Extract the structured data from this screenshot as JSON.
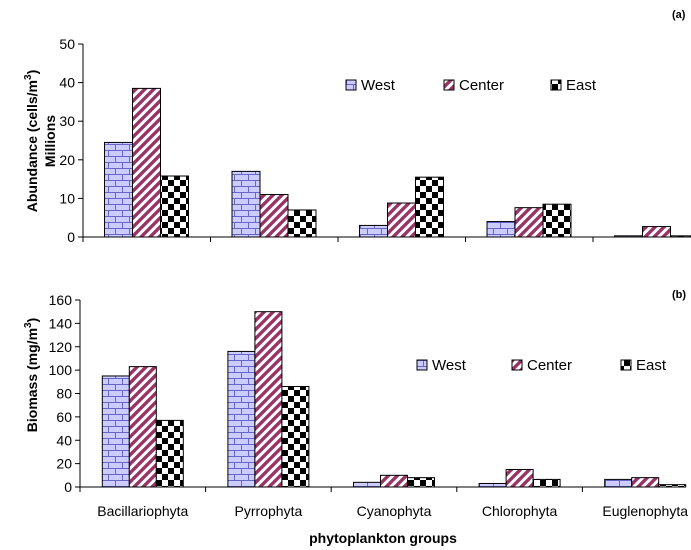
{
  "chart_data": [
    {
      "panel_label": "(a)",
      "type": "bar",
      "categories": [
        "Bacillariophyta",
        "Pyrrophyta",
        "Cyanophyta",
        "Chlorophyta",
        "Euglenophyta"
      ],
      "series": [
        {
          "name": "West",
          "values": [
            24.5,
            17.0,
            3.0,
            4.0,
            0.3
          ]
        },
        {
          "name": "Center",
          "values": [
            38.5,
            11.0,
            8.8,
            7.6,
            2.7
          ]
        },
        {
          "name": "East",
          "values": [
            15.8,
            7.0,
            15.5,
            8.5,
            0.3
          ]
        }
      ],
      "ylabel_line1": "Abundance (cells/m",
      "ylabel_sup": "3",
      "ylabel_line1_end": ")",
      "ylabel_line2": "Millions",
      "yticks": [
        "0",
        "10",
        "20",
        "30",
        "40",
        "50"
      ],
      "ylim": [
        0,
        50
      ],
      "legend_placement": "upper-right"
    },
    {
      "panel_label": "(b)",
      "type": "bar",
      "categories": [
        "Bacillariophyta",
        "Pyrrophyta",
        "Cyanophyta",
        "Chlorophyta",
        "Euglenophyta"
      ],
      "series": [
        {
          "name": "West",
          "values": [
            95,
            116,
            4,
            3,
            6.5
          ]
        },
        {
          "name": "Center",
          "values": [
            103,
            150,
            10,
            15,
            8
          ]
        },
        {
          "name": "East",
          "values": [
            57,
            86,
            8,
            6.5,
            2
          ]
        }
      ],
      "ylabel": "Biomass (mg/m",
      "ylabel_sup": "3",
      "ylabel_end": ")",
      "yticks": [
        "0",
        "20",
        "40",
        "60",
        "80",
        "100",
        "120",
        "140",
        "160"
      ],
      "ylim": [
        0,
        160
      ],
      "xlabel": "phytoplankton groups",
      "legend_placement": "middle-right"
    }
  ],
  "colors": {
    "west_fill": "#ccccff",
    "west_line": "#6666cc",
    "center_stripe": "#993366",
    "east": "#000000"
  }
}
